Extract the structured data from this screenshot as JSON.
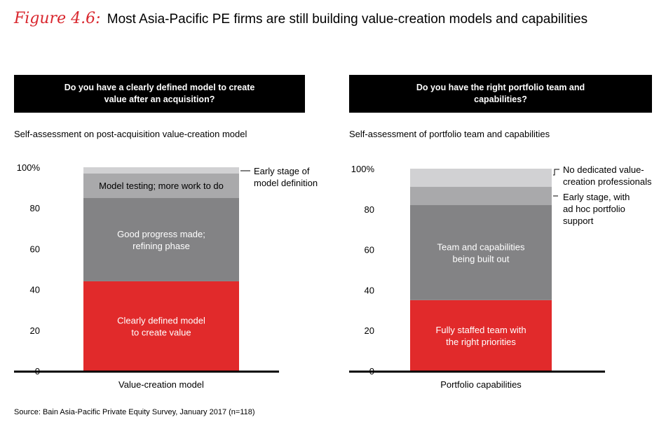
{
  "title": {
    "label": "Figure 4.6:",
    "text": "Most Asia-Pacific PE firms are still building value-creation models and capabilities"
  },
  "source": "Source: Bain Asia-Pacific Private Equity Survey, January 2017 (n=118)",
  "colors": {
    "red": "#e12a2b",
    "dark_gray": "#838385",
    "mid_gray": "#a9a9ab",
    "light_gray": "#d1d1d3",
    "black": "#000000"
  },
  "panels": [
    {
      "header": "Do you have a clearly defined model to create value after an acquisition?",
      "subtitle": "Self-assessment on post-acquisition value-creation model"
    },
    {
      "header": "Do you have the right portfolio team and capabilities?",
      "subtitle": "Self-assessment of portfolio team and capabilities"
    }
  ],
  "chart_data": [
    {
      "type": "bar",
      "stacked": true,
      "categories": [
        "Value-creation model"
      ],
      "yticks": [
        "0",
        "20",
        "40",
        "60",
        "80",
        "100%"
      ],
      "ylim": [
        0,
        100
      ],
      "series": [
        {
          "name": "Clearly defined model to create value",
          "values": [
            44
          ],
          "color": "#e12a2b",
          "label_inside": true
        },
        {
          "name": "Good progress made; refining phase",
          "values": [
            41
          ],
          "color": "#838385",
          "label_inside": true
        },
        {
          "name": "Model testing; more work to do",
          "values": [
            12
          ],
          "color": "#a9a9ab",
          "label_inside": true
        },
        {
          "name": "Early stage of model definition",
          "values": [
            3
          ],
          "color": "#d1d1d3",
          "label_inside": false
        }
      ]
    },
    {
      "type": "bar",
      "stacked": true,
      "categories": [
        "Portfolio capabilities"
      ],
      "yticks": [
        "0",
        "20",
        "40",
        "60",
        "80",
        "100%"
      ],
      "ylim": [
        0,
        100
      ],
      "series": [
        {
          "name": "Fully staffed team with the right priorities",
          "values": [
            35
          ],
          "color": "#e12a2b",
          "label_inside": true
        },
        {
          "name": "Team and capabilities being built out",
          "values": [
            47
          ],
          "color": "#838385",
          "label_inside": true
        },
        {
          "name": "Early stage, with ad hoc portfolio support",
          "values": [
            9
          ],
          "color": "#a9a9ab",
          "label_inside": false
        },
        {
          "name": "No dedicated value-creation professionals",
          "values": [
            9
          ],
          "color": "#d1d1d3",
          "label_inside": false
        }
      ]
    }
  ]
}
